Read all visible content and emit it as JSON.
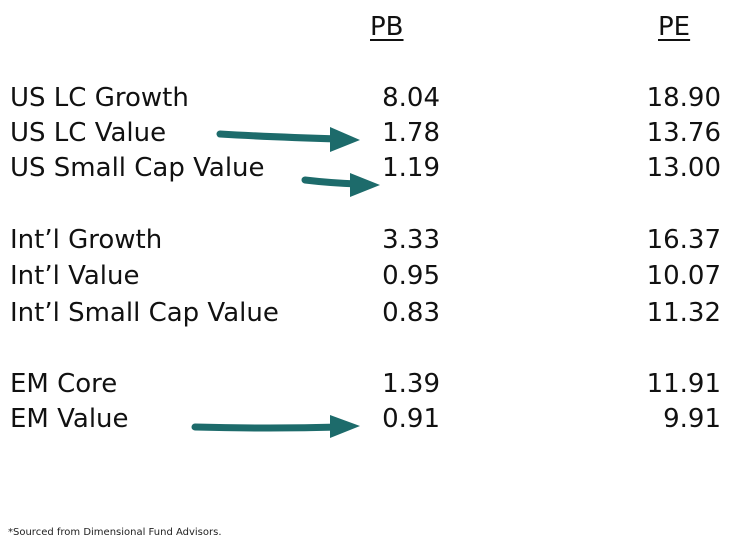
{
  "headers": {
    "pb": "PB",
    "pe": "PE"
  },
  "rows": [
    {
      "label": "US LC Growth",
      "pb": "8.04",
      "pe": "18.90"
    },
    {
      "label": "US LC Value",
      "pb": "1.78",
      "pe": "13.76"
    },
    {
      "label": "US Small Cap Value",
      "pb": "1.19",
      "pe": "13.00"
    },
    {
      "label": "Int’l Growth",
      "pb": "3.33",
      "pe": "16.37"
    },
    {
      "label": "Int’l Value",
      "pb": "0.95",
      "pe": "10.07"
    },
    {
      "label": "Int’l Small Cap Value",
      "pb": "0.83",
      "pe": "11.32"
    },
    {
      "label": "EM Core",
      "pb": "1.39",
      "pe": "11.91"
    },
    {
      "label": "EM Value",
      "pb": "0.91",
      "pe": "9.91"
    }
  ],
  "arrow_color": "#1d6b6b",
  "footnote": "*Sourced from Dimensional Fund Advisors."
}
